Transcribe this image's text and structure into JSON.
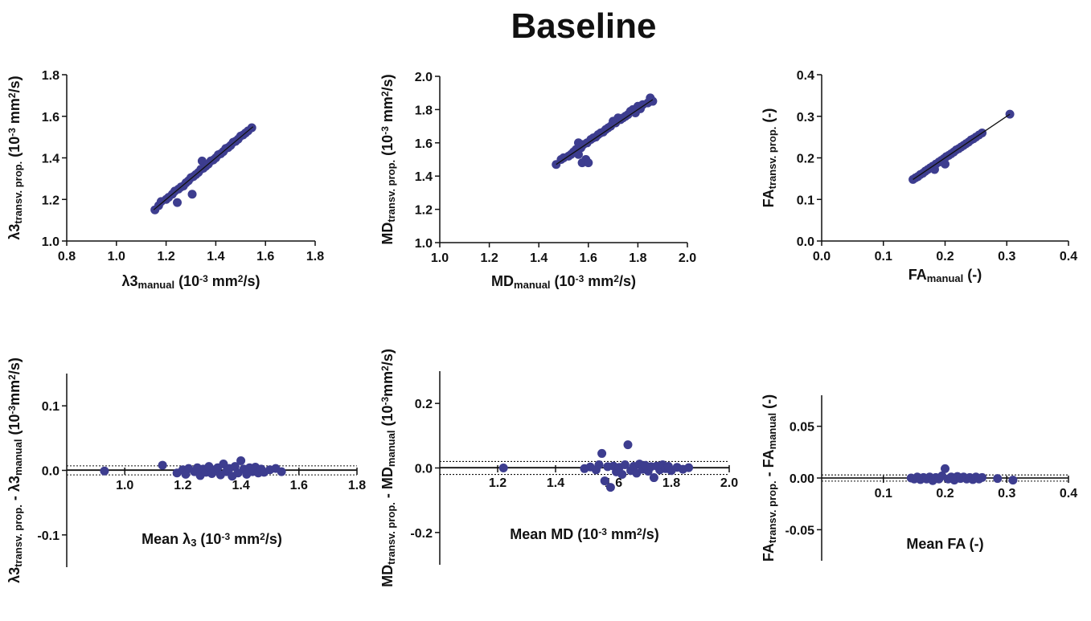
{
  "figure_title": "Baseline",
  "colors": {
    "point": "#3d3d8f",
    "axis": "#111111",
    "fit": "#111111"
  },
  "chart_data": [
    {
      "id": "scatter-l3",
      "type": "scatter",
      "xlabel": [
        {
          "t": "λ3"
        },
        {
          "t": "manual",
          "s": "sub"
        },
        {
          "t": " (10"
        },
        {
          "t": "-3",
          "s": "sup"
        },
        {
          "t": " mm"
        },
        {
          "t": "2",
          "s": "sup"
        },
        {
          "t": "/s)"
        }
      ],
      "ylabel": [
        {
          "t": "λ3"
        },
        {
          "t": "transv. prop.",
          "s": "sub"
        },
        {
          "t": " (10"
        },
        {
          "t": "-3",
          "s": "sup"
        },
        {
          "t": " mm"
        },
        {
          "t": "2",
          "s": "sup"
        },
        {
          "t": "/s)"
        }
      ],
      "xlim": [
        0.8,
        1.8
      ],
      "ylim": [
        1.0,
        1.8
      ],
      "xticks": [
        0.8,
        1.0,
        1.2,
        1.4,
        1.6,
        1.8
      ],
      "yticks": [
        1.0,
        1.2,
        1.4,
        1.6,
        1.8
      ],
      "xtick_labels": [
        "0.8",
        "1.0",
        "1.2",
        "1.4",
        "1.6",
        "1.8"
      ],
      "ytick_labels": [
        "1.0",
        "1.2",
        "1.4",
        "1.6",
        "1.8"
      ],
      "fit_line": [
        [
          1.15,
          1.15
        ],
        [
          1.55,
          1.55
        ]
      ],
      "points": [
        [
          1.155,
          1.15
        ],
        [
          1.17,
          1.17
        ],
        [
          1.18,
          1.19
        ],
        [
          1.2,
          1.2
        ],
        [
          1.21,
          1.21
        ],
        [
          1.225,
          1.225
        ],
        [
          1.235,
          1.24
        ],
        [
          1.245,
          1.185
        ],
        [
          1.25,
          1.25
        ],
        [
          1.26,
          1.26
        ],
        [
          1.27,
          1.265
        ],
        [
          1.28,
          1.28
        ],
        [
          1.29,
          1.29
        ],
        [
          1.3,
          1.305
        ],
        [
          1.305,
          1.225
        ],
        [
          1.31,
          1.31
        ],
        [
          1.32,
          1.32
        ],
        [
          1.33,
          1.33
        ],
        [
          1.34,
          1.345
        ],
        [
          1.345,
          1.385
        ],
        [
          1.35,
          1.35
        ],
        [
          1.36,
          1.36
        ],
        [
          1.37,
          1.37
        ],
        [
          1.38,
          1.385
        ],
        [
          1.39,
          1.39
        ],
        [
          1.4,
          1.4
        ],
        [
          1.41,
          1.415
        ],
        [
          1.42,
          1.42
        ],
        [
          1.43,
          1.43
        ],
        [
          1.44,
          1.445
        ],
        [
          1.45,
          1.45
        ],
        [
          1.46,
          1.46
        ],
        [
          1.47,
          1.475
        ],
        [
          1.48,
          1.48
        ],
        [
          1.49,
          1.49
        ],
        [
          1.5,
          1.505
        ],
        [
          1.51,
          1.51
        ],
        [
          1.52,
          1.52
        ],
        [
          1.53,
          1.53
        ],
        [
          1.545,
          1.545
        ]
      ]
    },
    {
      "id": "scatter-md",
      "type": "scatter",
      "xlabel": [
        {
          "t": "MD"
        },
        {
          "t": "manual",
          "s": "sub"
        },
        {
          "t": " (10"
        },
        {
          "t": "-3",
          "s": "sup"
        },
        {
          "t": " mm"
        },
        {
          "t": "2",
          "s": "sup"
        },
        {
          "t": "/s)"
        }
      ],
      "ylabel": [
        {
          "t": "MD"
        },
        {
          "t": "transv. prop.",
          "s": "sub"
        },
        {
          "t": " (10"
        },
        {
          "t": "-3",
          "s": "sup"
        },
        {
          "t": " mm"
        },
        {
          "t": "2",
          "s": "sup"
        },
        {
          "t": "/s)"
        }
      ],
      "xlim": [
        1.0,
        2.0
      ],
      "ylim": [
        1.0,
        2.0
      ],
      "xticks": [
        1.0,
        1.2,
        1.4,
        1.6,
        1.8,
        2.0
      ],
      "yticks": [
        1.0,
        1.2,
        1.4,
        1.6,
        1.8,
        2.0
      ],
      "xtick_labels": [
        "1.0",
        "1.2",
        "1.4",
        "1.6",
        "1.8",
        "2.0"
      ],
      "ytick_labels": [
        "1.0",
        "1.2",
        "1.4",
        "1.6",
        "1.8",
        "2.0"
      ],
      "fit_line": [
        [
          1.47,
          1.47
        ],
        [
          1.86,
          1.86
        ]
      ],
      "points": [
        [
          1.47,
          1.47
        ],
        [
          1.49,
          1.5
        ],
        [
          1.5,
          1.51
        ],
        [
          1.52,
          1.52
        ],
        [
          1.53,
          1.53
        ],
        [
          1.54,
          1.545
        ],
        [
          1.55,
          1.56
        ],
        [
          1.56,
          1.53
        ],
        [
          1.56,
          1.6
        ],
        [
          1.57,
          1.57
        ],
        [
          1.575,
          1.48
        ],
        [
          1.58,
          1.59
        ],
        [
          1.59,
          1.5
        ],
        [
          1.595,
          1.6
        ],
        [
          1.6,
          1.48
        ],
        [
          1.61,
          1.62
        ],
        [
          1.62,
          1.63
        ],
        [
          1.63,
          1.635
        ],
        [
          1.64,
          1.65
        ],
        [
          1.65,
          1.66
        ],
        [
          1.66,
          1.665
        ],
        [
          1.67,
          1.68
        ],
        [
          1.68,
          1.69
        ],
        [
          1.69,
          1.7
        ],
        [
          1.7,
          1.73
        ],
        [
          1.71,
          1.72
        ],
        [
          1.72,
          1.75
        ],
        [
          1.73,
          1.74
        ],
        [
          1.74,
          1.75
        ],
        [
          1.75,
          1.76
        ],
        [
          1.76,
          1.77
        ],
        [
          1.77,
          1.79
        ],
        [
          1.78,
          1.8
        ],
        [
          1.79,
          1.78
        ],
        [
          1.8,
          1.82
        ],
        [
          1.81,
          1.805
        ],
        [
          1.82,
          1.83
        ],
        [
          1.84,
          1.84
        ],
        [
          1.85,
          1.87
        ],
        [
          1.86,
          1.85
        ]
      ]
    },
    {
      "id": "scatter-fa",
      "type": "scatter",
      "xlabel": [
        {
          "t": "FA"
        },
        {
          "t": "manual",
          "s": "sub"
        },
        {
          "t": " (-)"
        }
      ],
      "ylabel": [
        {
          "t": "FA"
        },
        {
          "t": "transv. prop.",
          "s": "sub"
        },
        {
          "t": " (-)"
        }
      ],
      "xlim": [
        0.0,
        0.4
      ],
      "ylim": [
        0.0,
        0.4
      ],
      "xticks": [
        0.0,
        0.1,
        0.2,
        0.3,
        0.4
      ],
      "yticks": [
        0.0,
        0.1,
        0.2,
        0.3,
        0.4
      ],
      "xtick_labels": [
        "0.0",
        "0.1",
        "0.2",
        "0.3",
        "0.4"
      ],
      "ytick_labels": [
        "0.0",
        "0.1",
        "0.2",
        "0.3",
        "0.4"
      ],
      "fit_line": [
        [
          0.148,
          0.148
        ],
        [
          0.305,
          0.305
        ]
      ],
      "points": [
        [
          0.148,
          0.148
        ],
        [
          0.152,
          0.152
        ],
        [
          0.156,
          0.155
        ],
        [
          0.16,
          0.16
        ],
        [
          0.164,
          0.163
        ],
        [
          0.168,
          0.168
        ],
        [
          0.172,
          0.172
        ],
        [
          0.176,
          0.176
        ],
        [
          0.18,
          0.18
        ],
        [
          0.183,
          0.172
        ],
        [
          0.185,
          0.185
        ],
        [
          0.19,
          0.19
        ],
        [
          0.194,
          0.194
        ],
        [
          0.198,
          0.198
        ],
        [
          0.2,
          0.185
        ],
        [
          0.202,
          0.203
        ],
        [
          0.206,
          0.206
        ],
        [
          0.21,
          0.21
        ],
        [
          0.214,
          0.214
        ],
        [
          0.218,
          0.219
        ],
        [
          0.222,
          0.222
        ],
        [
          0.226,
          0.226
        ],
        [
          0.23,
          0.23
        ],
        [
          0.234,
          0.234
        ],
        [
          0.238,
          0.238
        ],
        [
          0.242,
          0.243
        ],
        [
          0.246,
          0.246
        ],
        [
          0.25,
          0.25
        ],
        [
          0.255,
          0.255
        ],
        [
          0.26,
          0.26
        ],
        [
          0.305,
          0.305
        ]
      ]
    },
    {
      "id": "ba-l3",
      "type": "scatter",
      "xlabel": [
        {
          "t": "Mean λ"
        },
        {
          "t": "3",
          "s": "sub"
        },
        {
          "t": " (10"
        },
        {
          "t": "-3",
          "s": "sup"
        },
        {
          "t": " mm"
        },
        {
          "t": "2",
          "s": "sup"
        },
        {
          "t": "/s)"
        }
      ],
      "ylabel": [
        {
          "t": "λ3"
        },
        {
          "t": "transv. prop.",
          "s": "sub"
        },
        {
          "t": " - λ3"
        },
        {
          "t": "manual",
          "s": "sub"
        },
        {
          "t": " (10"
        },
        {
          "t": "-3",
          "s": "sup"
        },
        {
          "t": "mm"
        },
        {
          "t": "2",
          "s": "sup"
        },
        {
          "t": "/s)"
        }
      ],
      "xlim": [
        0.8,
        1.8
      ],
      "ylim": [
        -0.15,
        0.15
      ],
      "xticks": [
        1.0,
        1.2,
        1.4,
        1.6,
        1.8
      ],
      "yticks": [
        -0.1,
        0.0,
        0.1
      ],
      "xtick_labels": [
        "1.0",
        "1.2",
        "1.4",
        "1.6",
        "1.8"
      ],
      "ytick_labels": [
        "-0.1",
        "0.0",
        "0.1"
      ],
      "mean_line": 0.0,
      "limits": [
        0.007,
        -0.007
      ],
      "points": [
        [
          0.93,
          -0.001
        ],
        [
          1.13,
          0.008
        ],
        [
          1.18,
          -0.004
        ],
        [
          1.2,
          0.001
        ],
        [
          1.21,
          -0.006
        ],
        [
          1.22,
          0.003
        ],
        [
          1.24,
          -0.002
        ],
        [
          1.25,
          0.004
        ],
        [
          1.26,
          -0.008
        ],
        [
          1.27,
          0.002
        ],
        [
          1.28,
          -0.003
        ],
        [
          1.29,
          0.006
        ],
        [
          1.3,
          -0.005
        ],
        [
          1.31,
          0.001
        ],
        [
          1.32,
          0.004
        ],
        [
          1.33,
          -0.007
        ],
        [
          1.34,
          0.01
        ],
        [
          1.35,
          -0.002
        ],
        [
          1.36,
          0.003
        ],
        [
          1.37,
          -0.009
        ],
        [
          1.38,
          0.006
        ],
        [
          1.39,
          -0.004
        ],
        [
          1.4,
          0.015
        ],
        [
          1.41,
          0.002
        ],
        [
          1.42,
          -0.006
        ],
        [
          1.43,
          0.004
        ],
        [
          1.44,
          -0.002
        ],
        [
          1.45,
          0.005
        ],
        [
          1.46,
          -0.004
        ],
        [
          1.47,
          0.002
        ],
        [
          1.48,
          -0.003
        ],
        [
          1.5,
          0.001
        ],
        [
          1.52,
          0.003
        ],
        [
          1.54,
          -0.002
        ]
      ]
    },
    {
      "id": "ba-md",
      "type": "scatter",
      "xlabel": [
        {
          "t": "Mean MD (10"
        },
        {
          "t": "-3",
          "s": "sup"
        },
        {
          "t": " mm"
        },
        {
          "t": "2",
          "s": "sup"
        },
        {
          "t": "/s)"
        }
      ],
      "ylabel": [
        {
          "t": "MD"
        },
        {
          "t": "transv. prop.",
          "s": "sub"
        },
        {
          "t": " - MD"
        },
        {
          "t": "manual",
          "s": "sub"
        },
        {
          "t": " (10"
        },
        {
          "t": "-3",
          "s": "sup"
        },
        {
          "t": "mm"
        },
        {
          "t": "2",
          "s": "sup"
        },
        {
          "t": "/s)"
        }
      ],
      "xlim": [
        1.0,
        2.0
      ],
      "ylim": [
        -0.3,
        0.3
      ],
      "xticks": [
        1.2,
        1.4,
        1.6,
        1.8,
        2.0
      ],
      "yticks": [
        -0.2,
        0.0,
        0.2
      ],
      "xtick_labels": [
        "1.2",
        "1.4",
        "1.6",
        "1.8",
        "2.0"
      ],
      "ytick_labels": [
        "-0.2",
        "0.0",
        "0.2"
      ],
      "mean_line": 0.0,
      "limits": [
        0.02,
        -0.02
      ],
      "points": [
        [
          1.22,
          0.0
        ],
        [
          1.5,
          -0.002
        ],
        [
          1.52,
          0.003
        ],
        [
          1.54,
          -0.006
        ],
        [
          1.55,
          0.01
        ],
        [
          1.56,
          0.045
        ],
        [
          1.57,
          -0.04
        ],
        [
          1.58,
          0.004
        ],
        [
          1.59,
          -0.06
        ],
        [
          1.6,
          0.006
        ],
        [
          1.61,
          -0.012
        ],
        [
          1.62,
          0.002
        ],
        [
          1.63,
          -0.02
        ],
        [
          1.64,
          0.01
        ],
        [
          1.65,
          0.072
        ],
        [
          1.66,
          -0.008
        ],
        [
          1.67,
          0.005
        ],
        [
          1.68,
          -0.016
        ],
        [
          1.69,
          0.012
        ],
        [
          1.7,
          -0.004
        ],
        [
          1.71,
          0.008
        ],
        [
          1.72,
          -0.01
        ],
        [
          1.73,
          0.004
        ],
        [
          1.74,
          -0.03
        ],
        [
          1.75,
          0.006
        ],
        [
          1.76,
          -0.006
        ],
        [
          1.77,
          0.01
        ],
        [
          1.78,
          -0.002
        ],
        [
          1.79,
          0.005
        ],
        [
          1.8,
          -0.008
        ],
        [
          1.82,
          0.002
        ],
        [
          1.84,
          -0.004
        ],
        [
          1.86,
          0.001
        ]
      ]
    },
    {
      "id": "ba-fa",
      "type": "scatter",
      "xlabel": [
        {
          "t": "Mean FA (-)"
        }
      ],
      "ylabel": [
        {
          "t": "FA"
        },
        {
          "t": "transv. prop.",
          "s": "sub"
        },
        {
          "t": " - FA"
        },
        {
          "t": "manual",
          "s": "sub"
        },
        {
          "t": " (-)"
        }
      ],
      "xlim": [
        0.0,
        0.4
      ],
      "ylim": [
        -0.08,
        0.08
      ],
      "xticks": [
        0.1,
        0.2,
        0.3,
        0.4
      ],
      "yticks": [
        -0.05,
        0.0,
        0.05
      ],
      "xtick_labels": [
        "0.1",
        "0.2",
        "0.3",
        "0.4"
      ],
      "ytick_labels": [
        "-0.05",
        "0.00",
        "0.05"
      ],
      "mean_line": 0.0,
      "limits": [
        0.003,
        -0.003
      ],
      "points": [
        [
          0.145,
          0.0
        ],
        [
          0.15,
          -0.001
        ],
        [
          0.155,
          0.001
        ],
        [
          0.16,
          -0.0015
        ],
        [
          0.165,
          0.0005
        ],
        [
          0.17,
          -0.001
        ],
        [
          0.175,
          0.001
        ],
        [
          0.18,
          -0.0025
        ],
        [
          0.185,
          0.0005
        ],
        [
          0.19,
          -0.001
        ],
        [
          0.195,
          0.002
        ],
        [
          0.2,
          0.009
        ],
        [
          0.205,
          -0.001
        ],
        [
          0.21,
          0.001
        ],
        [
          0.215,
          -0.002
        ],
        [
          0.22,
          0.0015
        ],
        [
          0.225,
          -0.0005
        ],
        [
          0.23,
          0.001
        ],
        [
          0.235,
          -0.001
        ],
        [
          0.24,
          0.0005
        ],
        [
          0.245,
          -0.0015
        ],
        [
          0.25,
          0.001
        ],
        [
          0.255,
          -0.001
        ],
        [
          0.26,
          0.0005
        ],
        [
          0.285,
          -0.0005
        ],
        [
          0.31,
          -0.002
        ]
      ]
    }
  ]
}
